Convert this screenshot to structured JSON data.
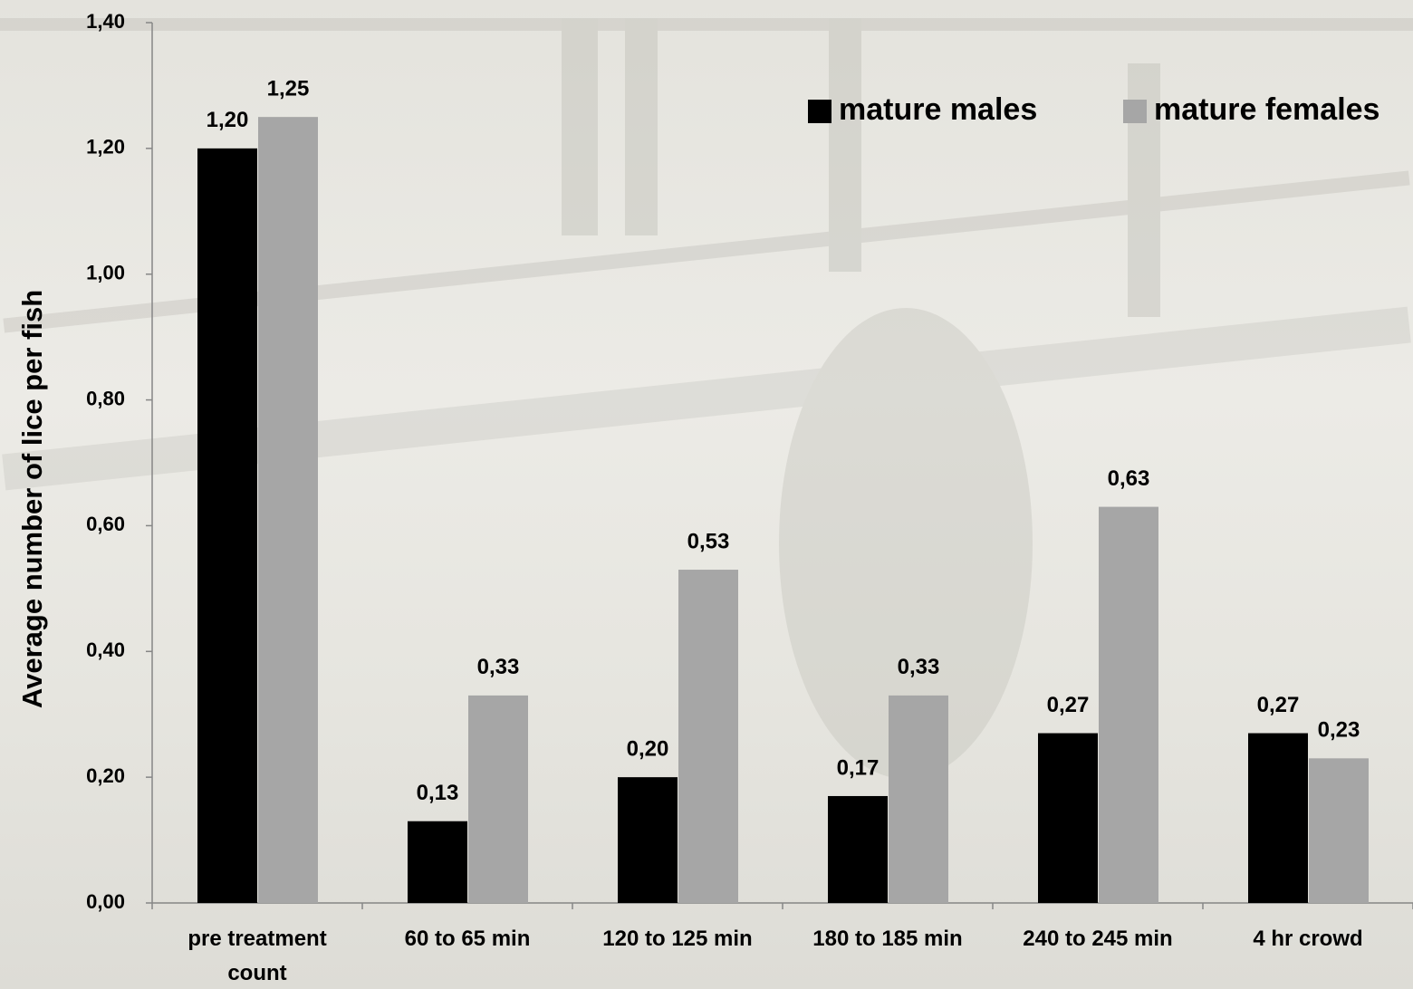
{
  "chart_data": {
    "type": "bar",
    "y_label": "Average number of lice per fish",
    "categories": [
      "pre treatment count",
      "60 to 65 min",
      "120 to 125 min",
      "180 to 185 min",
      "240 to 245 min",
      "4 hr crowd"
    ],
    "series": [
      {
        "name": "mature males",
        "color": "#000000",
        "values": [
          1.2,
          0.13,
          0.2,
          0.17,
          0.27,
          0.27
        ],
        "value_labels": [
          "1,20",
          "0,13",
          "0,20",
          "0,17",
          "0,27",
          "0,27"
        ]
      },
      {
        "name": "mature females",
        "color": "#a6a6a6",
        "values": [
          1.25,
          0.33,
          0.53,
          0.33,
          0.63,
          0.23
        ],
        "value_labels": [
          "1,25",
          "0,33",
          "0,53",
          "0,33",
          "0,63",
          "0,23"
        ]
      }
    ],
    "ylim": [
      0,
      1.4
    ],
    "yticks": [
      {
        "value": 0,
        "label": "0,00"
      },
      {
        "value": 0.2,
        "label": "0,20"
      },
      {
        "value": 0.4,
        "label": "0,40"
      },
      {
        "value": 0.6,
        "label": "0,60"
      },
      {
        "value": 0.8,
        "label": "0,80"
      },
      {
        "value": 1.0,
        "label": "1,00"
      },
      {
        "value": 1.2,
        "label": "1,20"
      },
      {
        "value": 1.4,
        "label": "1,40"
      }
    ],
    "legend": "top-right",
    "grid": false
  }
}
